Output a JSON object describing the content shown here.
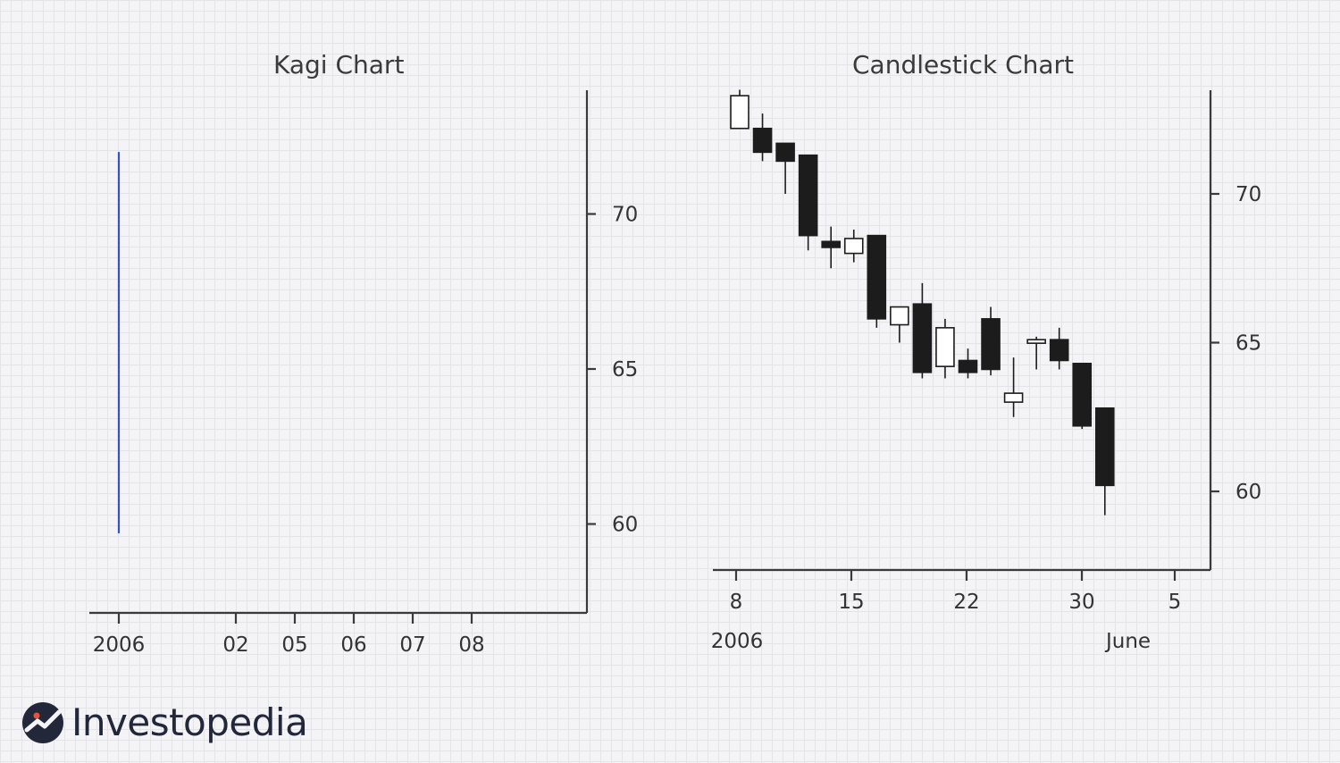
{
  "brand": {
    "name": "Investopedia"
  },
  "chart_data": [
    {
      "type": "line",
      "title": "Kagi Chart",
      "x_tick_labels": [
        "2006",
        "02",
        "05",
        "06",
        "07",
        "08"
      ],
      "y_ticks": [
        60,
        65,
        70
      ],
      "ylim": [
        57.2,
        74
      ],
      "y_axis_side": "right",
      "grid": false,
      "series": [
        {
          "color": "#3a4fc2",
          "points": [
            {
              "x": "2006",
              "y": 72
            },
            {
              "x": "2006",
              "y": 59.7
            }
          ]
        }
      ]
    },
    {
      "type": "candlestick",
      "title": "Candlestick Chart",
      "x_tick_labels": [
        "8",
        "15",
        "22",
        "30",
        "5"
      ],
      "x_sub_labels": [
        "2006",
        "June"
      ],
      "y_ticks": [
        60,
        65,
        70
      ],
      "ylim": [
        57.3,
        73.5
      ],
      "y_axis_side": "right",
      "grid": false,
      "colors": {
        "down": "#1c1c1c",
        "up": "#ffffff"
      },
      "candles": [
        {
          "open": 72.2,
          "high": 73.5,
          "low": 72.2,
          "close": 73.3
        },
        {
          "open": 72.2,
          "high": 72.7,
          "low": 71.1,
          "close": 71.4
        },
        {
          "open": 71.7,
          "high": 71.7,
          "low": 70.0,
          "close": 71.1
        },
        {
          "open": 71.3,
          "high": 71.3,
          "low": 68.1,
          "close": 68.6
        },
        {
          "open": 68.4,
          "high": 68.9,
          "low": 67.5,
          "close": 68.2
        },
        {
          "open": 68.0,
          "high": 68.8,
          "low": 67.7,
          "close": 68.5
        },
        {
          "open": 68.6,
          "high": 68.6,
          "low": 65.5,
          "close": 65.8
        },
        {
          "open": 65.6,
          "high": 66.1,
          "low": 65.0,
          "close": 66.2
        },
        {
          "open": 66.3,
          "high": 67.0,
          "low": 63.8,
          "close": 64.0
        },
        {
          "open": 64.2,
          "high": 65.8,
          "low": 63.8,
          "close": 65.5
        },
        {
          "open": 64.4,
          "high": 64.8,
          "low": 63.8,
          "close": 64.0
        },
        {
          "open": 65.8,
          "high": 66.2,
          "low": 63.9,
          "close": 64.1
        },
        {
          "open": 63.0,
          "high": 64.5,
          "low": 62.5,
          "close": 63.3
        },
        {
          "open": 65.0,
          "high": 65.2,
          "low": 64.1,
          "close": 65.1
        },
        {
          "open": 65.1,
          "high": 65.5,
          "low": 64.1,
          "close": 64.4
        },
        {
          "open": 64.3,
          "high": 64.3,
          "low": 62.1,
          "close": 62.2
        },
        {
          "open": 62.8,
          "high": 62.8,
          "low": 59.2,
          "close": 60.2
        }
      ]
    }
  ]
}
